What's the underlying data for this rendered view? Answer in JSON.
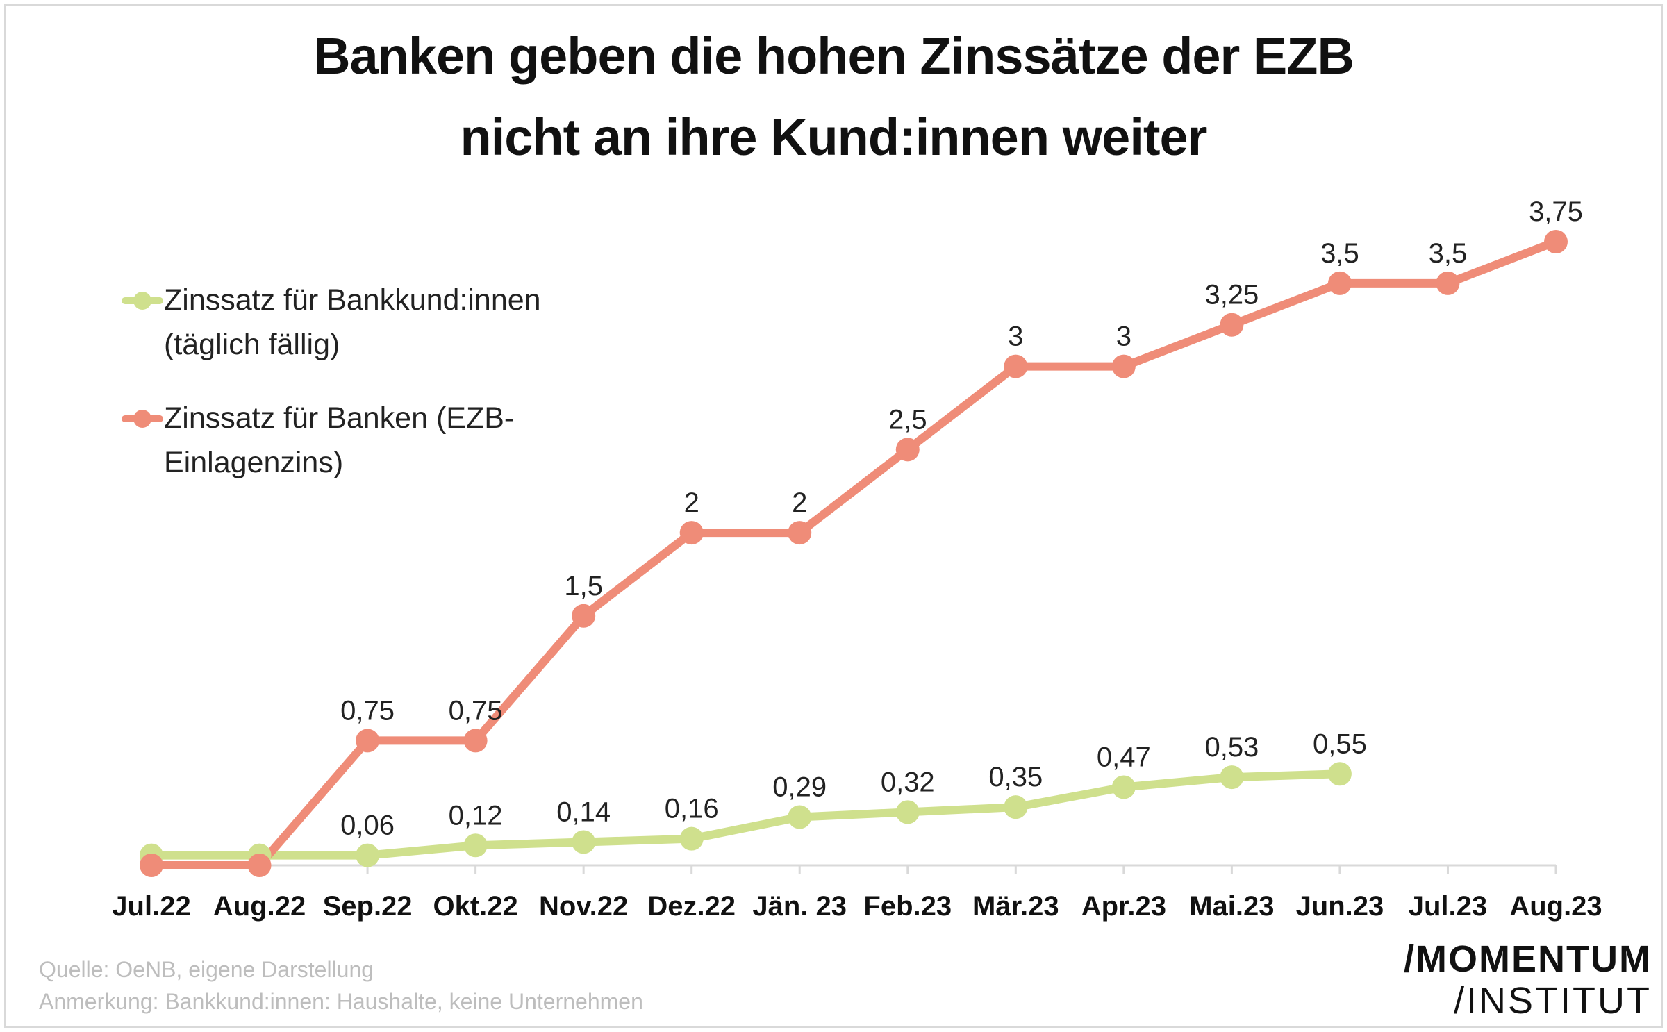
{
  "title_line1": "Banken geben die hohen Zinssätze der EZB",
  "title_line2": "nicht an ihre Kund:innen weiter",
  "source": "Quelle: OeNB, eigene Darstellung",
  "note": "Anmerkung: Bankkund:innen: Haushalte, keine Unternehmen",
  "logo": {
    "line1": "/MOMENTUM",
    "line2": "/INSTITUT"
  },
  "legend": {
    "green_line1": "Zinssatz für Bankkund:innen",
    "green_line2": "(täglich fällig)",
    "red_line1": "Zinssatz für Banken (EZB-",
    "red_line2": "Einlagenzins)"
  },
  "colors": {
    "green": "#cfe08d",
    "red": "#ef8c78",
    "axis": "#d9d9d9"
  },
  "chart_data": {
    "type": "line",
    "categories": [
      "Jul.22",
      "Aug.22",
      "Sep.22",
      "Okt.22",
      "Nov.22",
      "Dez.22",
      "Jän. 23",
      "Feb.23",
      "Mär.23",
      "Apr.23",
      "Mai.23",
      "Jun.23",
      "Jul.23",
      "Aug.23"
    ],
    "ylim": [
      0,
      3.75
    ],
    "grid": false,
    "legend_position": "top-left",
    "series": [
      {
        "name": "Zinssatz für Bankkund:innen (täglich fällig)",
        "color": "#cfe08d",
        "values": [
          0.06,
          0.06,
          0.06,
          0.12,
          0.14,
          0.16,
          0.29,
          0.32,
          0.35,
          0.47,
          0.53,
          0.55,
          null,
          null
        ],
        "labels": [
          "",
          "",
          "0,06",
          "0,12",
          "0,14",
          "0,16",
          "0,29",
          "0,32",
          "0,35",
          "0,47",
          "0,53",
          "0,55",
          "",
          ""
        ]
      },
      {
        "name": "Zinssatz für Banken (EZB-Einlagenzins)",
        "color": "#ef8c78",
        "values": [
          0,
          0,
          0.75,
          0.75,
          1.5,
          2,
          2,
          2.5,
          3,
          3,
          3.25,
          3.5,
          3.5,
          3.75
        ],
        "labels": [
          "",
          "",
          "0,75",
          "0,75",
          "1,5",
          "2",
          "2",
          "2,5",
          "3",
          "3",
          "3,25",
          "3,5",
          "3,5",
          "3,75"
        ]
      }
    ]
  }
}
